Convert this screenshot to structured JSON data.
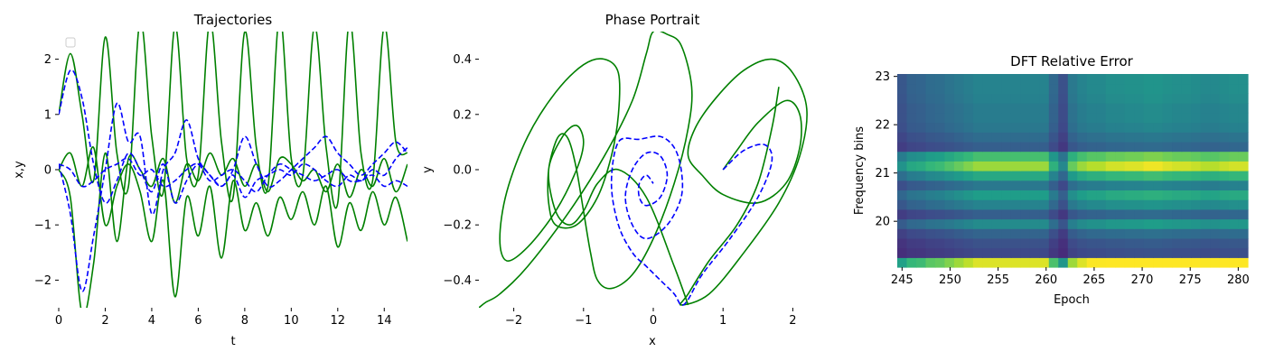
{
  "chart_data": [
    {
      "type": "line",
      "title": "Trajectories",
      "xlabel": "t",
      "ylabel": "x,y",
      "xlim": [
        0,
        15
      ],
      "ylim": [
        -2.5,
        2.5
      ],
      "xticks": [
        0,
        2,
        4,
        6,
        8,
        10,
        12,
        14
      ],
      "yticks": [
        -2,
        -1,
        0,
        1,
        2
      ],
      "xtick_labels": [
        "0",
        "2",
        "4",
        "6",
        "8",
        "10",
        "12",
        "14"
      ],
      "ytick_labels": [
        "−2",
        "−1",
        "0",
        "1",
        "2"
      ],
      "legend": "top-left, empty",
      "grid": false,
      "series": [
        {
          "style": "solid",
          "color": "#008000",
          "x": [
            0,
            0.5,
            1,
            1.5,
            2,
            2.5,
            3,
            3.5,
            4,
            4.5,
            5,
            5.5,
            6,
            6.5,
            7,
            7.5,
            8,
            8.5,
            9,
            9.5,
            10,
            10.5,
            11,
            11.5,
            12,
            12.5,
            13,
            13.5,
            14,
            14.5,
            15
          ],
          "values": [
            1.0,
            2.1,
            1.0,
            -0.2,
            2.4,
            0.3,
            -0.3,
            2.7,
            0.6,
            -0.4,
            2.6,
            0.2,
            -0.1,
            2.7,
            0.5,
            -0.5,
            2.5,
            0.4,
            -0.3,
            2.8,
            0.2,
            -0.1,
            2.6,
            0.4,
            -0.6,
            2.7,
            0.3,
            -0.2,
            2.6,
            0.5,
            0.3
          ]
        },
        {
          "style": "solid",
          "color": "#008000",
          "x": [
            0,
            0.5,
            1,
            1.5,
            2,
            2.5,
            3,
            3.5,
            4,
            4.5,
            5,
            5.5,
            6,
            6.5,
            7,
            7.5,
            8,
            8.5,
            9,
            9.5,
            10,
            10.5,
            11,
            11.5,
            12,
            12.5,
            13,
            13.5,
            14,
            14.5,
            15
          ],
          "values": [
            0.0,
            0.3,
            -0.3,
            0.4,
            -1.0,
            -0.3,
            0.1,
            -0.4,
            -1.3,
            -0.2,
            -2.3,
            -0.5,
            -1.2,
            -0.3,
            -1.6,
            -0.2,
            -1.1,
            -0.6,
            -1.2,
            -0.5,
            -0.9,
            -0.4,
            -1.0,
            -0.3,
            -1.4,
            -0.6,
            -1.1,
            -0.4,
            -1.0,
            -0.5,
            -1.3
          ]
        },
        {
          "style": "solid",
          "color": "#008000",
          "x": [
            0,
            0.5,
            1,
            1.5,
            2,
            2.5,
            3,
            3.5,
            4,
            4.5,
            5,
            5.5,
            6,
            6.5,
            7,
            7.5,
            8,
            8.5,
            9,
            9.5,
            10,
            10.5,
            11,
            11.5,
            12,
            12.5,
            13,
            13.5,
            14,
            14.5,
            15
          ],
          "values": [
            0.0,
            -0.5,
            -2.6,
            -1.7,
            0.3,
            -1.3,
            0.2,
            0.0,
            -0.3,
            0.2,
            -0.6,
            0.1,
            -0.2,
            0.3,
            -0.1,
            0.2,
            -0.3,
            0.1,
            -0.4,
            0.2,
            0.1,
            -0.2,
            0.0,
            -0.4,
            0.1,
            -0.5,
            0.0,
            -0.3,
            0.2,
            -0.4,
            0.1
          ]
        },
        {
          "style": "dashed",
          "color": "#0000ff",
          "x": [
            0,
            0.5,
            1,
            1.5,
            2,
            2.5,
            3,
            3.5,
            4,
            4.5,
            5,
            5.5,
            6,
            6.5,
            7,
            7.5,
            8,
            8.5,
            9,
            9.5,
            10,
            10.5,
            11,
            11.5,
            12,
            12.5,
            13,
            13.5,
            14,
            14.5,
            15
          ],
          "values": [
            1.0,
            1.8,
            1.3,
            0.1,
            -0.6,
            -0.2,
            0.3,
            0.0,
            -0.4,
            0.1,
            -0.6,
            -0.2,
            0.1,
            -0.1,
            -0.3,
            -0.1,
            -0.5,
            -0.2,
            -0.1,
            0.0,
            -0.1,
            0.1,
            0.0,
            -0.2,
            -0.3,
            -0.1,
            -0.2,
            0.0,
            -0.1,
            0.2,
            0.4
          ]
        },
        {
          "style": "dashed",
          "color": "#0000ff",
          "x": [
            0,
            0.5,
            1,
            1.5,
            2,
            2.5,
            3,
            3.5,
            4,
            4.5,
            5,
            5.5,
            6,
            6.5,
            7,
            7.5,
            8,
            8.5,
            9,
            9.5,
            10,
            10.5,
            11,
            11.5,
            12,
            12.5,
            13,
            13.5,
            14,
            14.5,
            15
          ],
          "values": [
            0.1,
            -0.8,
            -2.2,
            -1.2,
            0.0,
            1.2,
            0.5,
            0.6,
            -0.8,
            0.0,
            0.3,
            0.9,
            0.2,
            -0.1,
            -0.3,
            0.0,
            0.6,
            0.1,
            -0.3,
            -0.2,
            0.0,
            0.2,
            0.4,
            0.6,
            0.3,
            0.1,
            -0.1,
            0.1,
            0.3,
            0.5,
            0.3
          ]
        },
        {
          "style": "dashed",
          "color": "#0000ff",
          "x": [
            0,
            0.5,
            1,
            1.5,
            2,
            2.5,
            3,
            3.5,
            4,
            4.5,
            5,
            5.5,
            6,
            6.5,
            7,
            7.5,
            8,
            8.5,
            9,
            9.5,
            10,
            10.5,
            11,
            11.5,
            12,
            12.5,
            13,
            13.5,
            14,
            14.5,
            15
          ],
          "values": [
            0.1,
            0.0,
            -0.3,
            -0.2,
            0.0,
            0.1,
            0.2,
            -0.1,
            0.0,
            -0.3,
            -0.2,
            0.0,
            0.1,
            -0.2,
            -0.1,
            0.0,
            -0.2,
            -0.4,
            -0.1,
            0.1,
            0.0,
            -0.1,
            -0.2,
            -0.1,
            0.0,
            -0.2,
            -0.2,
            -0.1,
            -0.3,
            -0.2,
            -0.3
          ]
        }
      ]
    },
    {
      "type": "line",
      "title": "Phase Portrait",
      "xlabel": "x",
      "ylabel": "y",
      "xlim": [
        -2.5,
        2.5
      ],
      "ylim": [
        -0.5,
        0.5
      ],
      "xticks": [
        -2,
        -1,
        0,
        1,
        2
      ],
      "yticks": [
        -0.4,
        -0.2,
        0.0,
        0.2,
        0.4
      ],
      "xtick_labels": [
        "−2",
        "−1",
        "0",
        "1",
        "2"
      ],
      "ytick_labels": [
        "−0.4",
        "−0.2",
        "0.0",
        "0.2",
        "0.4"
      ],
      "grid": false,
      "series": [
        {
          "style": "solid",
          "color": "#008000",
          "x": [
            1.0,
            1.2,
            1.5,
            1.9,
            2.1,
            2.1,
            1.9,
            1.5,
            1.0,
            0.7,
            0.5,
            0.6,
            0.9,
            1.3,
            1.7,
            2.0,
            2.2,
            2.1,
            1.8,
            1.3,
            0.8,
            0.4,
            0.5,
            0.8,
            1.2,
            1.5,
            1.7,
            1.8
          ],
          "values": [
            0.0,
            0.07,
            0.17,
            0.25,
            0.2,
            0.08,
            -0.05,
            -0.12,
            -0.09,
            -0.02,
            0.05,
            0.15,
            0.26,
            0.36,
            0.4,
            0.35,
            0.22,
            0.05,
            -0.12,
            -0.3,
            -0.45,
            -0.49,
            -0.45,
            -0.33,
            -0.2,
            -0.05,
            0.15,
            0.3
          ]
        },
        {
          "style": "solid",
          "color": "#008000",
          "x": [
            -2.5,
            -2.4,
            -2.2,
            -1.8,
            -1.2,
            -0.7,
            -0.3,
            -0.1,
            0.0,
            0.2,
            0.4,
            0.55,
            0.5,
            0.3,
            0.0,
            -0.3,
            -0.6,
            -0.8,
            -0.9,
            -1.0,
            -1.1,
            -1.2,
            -1.3,
            -1.4,
            -1.5,
            -1.5,
            -1.4,
            -1.1,
            -0.8,
            -0.6,
            -0.5,
            -0.5,
            -0.7,
            -1.0,
            -1.4,
            -1.8,
            -2.1,
            -2.2,
            -2.1,
            -1.8,
            -1.4,
            -1.1,
            -1.0,
            -1.1,
            -1.3,
            -1.5,
            -1.4,
            -1.2,
            -1.0,
            -0.8,
            -0.5,
            -0.1,
            0.3,
            0.5
          ],
          "values": [
            -0.5,
            -0.48,
            -0.45,
            -0.35,
            -0.15,
            0.05,
            0.25,
            0.42,
            0.5,
            0.49,
            0.45,
            0.3,
            0.15,
            -0.05,
            -0.25,
            -0.38,
            -0.43,
            -0.4,
            -0.3,
            -0.15,
            0.0,
            0.1,
            0.13,
            0.1,
            0.0,
            -0.12,
            -0.2,
            -0.2,
            -0.1,
            0.05,
            0.2,
            0.35,
            0.4,
            0.38,
            0.28,
            0.12,
            -0.08,
            -0.25,
            -0.33,
            -0.28,
            -0.15,
            0.0,
            0.1,
            0.16,
            0.12,
            0.0,
            -0.15,
            -0.2,
            -0.15,
            -0.05,
            0.0,
            -0.1,
            -0.35,
            -0.49
          ]
        },
        {
          "style": "dashed",
          "color": "#0000ff",
          "x": [
            1.0,
            1.3,
            1.6,
            1.7,
            1.5,
            1.1,
            0.7,
            0.5,
            0.4,
            0.3,
            0.1,
            -0.1,
            -0.3,
            -0.5,
            -0.6,
            -0.5,
            -0.2,
            0.1,
            0.3,
            0.4,
            0.4,
            0.2,
            -0.1,
            -0.3,
            -0.4,
            -0.3,
            -0.1,
            0.1,
            0.2,
            0.1,
            -0.1,
            -0.2,
            -0.2,
            -0.1,
            0.0
          ],
          "values": [
            0.0,
            0.07,
            0.09,
            0.03,
            -0.1,
            -0.25,
            -0.38,
            -0.47,
            -0.49,
            -0.45,
            -0.4,
            -0.35,
            -0.3,
            -0.2,
            -0.05,
            0.1,
            0.11,
            0.12,
            0.08,
            0.0,
            -0.1,
            -0.2,
            -0.25,
            -0.2,
            -0.1,
            0.0,
            0.06,
            0.05,
            -0.02,
            -0.1,
            -0.13,
            -0.1,
            -0.05,
            -0.02,
            -0.05
          ]
        }
      ]
    },
    {
      "type": "heatmap",
      "title": "DFT Relative Error",
      "xlabel": "Epoch",
      "ylabel": "Frequency bins",
      "xlim": [
        244.5,
        281.0
      ],
      "ylim": [
        19.05,
        23.05
      ],
      "xticks": [
        245,
        250,
        255,
        260,
        265,
        270,
        275,
        280
      ],
      "yticks": [
        20,
        21,
        22,
        23
      ],
      "xtick_labels": [
        "245",
        "250",
        "255",
        "260",
        "265",
        "270",
        "275",
        "280"
      ],
      "ytick_labels": [
        "20",
        "21",
        "22",
        "23"
      ],
      "colormap": "viridis",
      "row_levels": [
        0.95,
        0.22,
        0.25,
        0.32,
        0.48,
        0.3,
        0.45,
        0.55,
        0.4,
        0.6,
        0.85,
        0.7,
        0.3,
        0.35,
        0.4,
        0.42,
        0.42,
        0.44,
        0.45,
        0.45
      ],
      "column_factors": [
        0.6,
        0.7,
        0.72,
        0.78,
        0.8,
        0.85,
        0.9,
        0.95,
        1.0,
        1.0,
        1.0,
        1.0,
        1.0,
        1.0,
        1.0,
        1.0,
        0.75,
        0.55,
        0.9,
        1.0,
        1.05,
        1.05,
        1.1,
        1.1,
        1.12,
        1.12,
        1.15,
        1.15,
        1.12,
        1.1,
        1.1,
        1.08,
        1.05,
        1.05,
        1.08,
        1.1,
        1.1
      ]
    }
  ]
}
